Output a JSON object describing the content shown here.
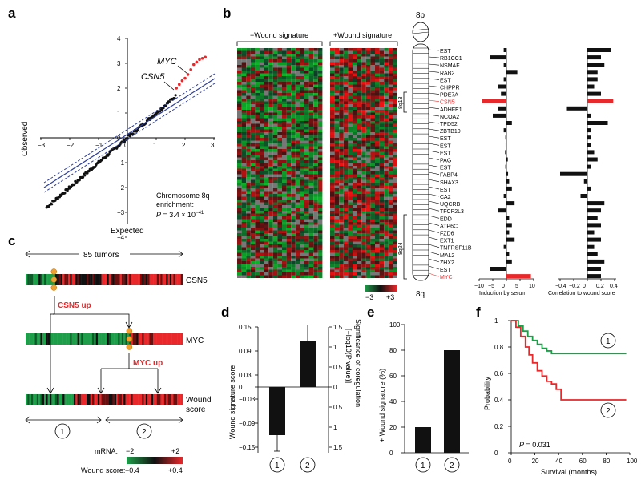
{
  "colors": {
    "red": "#e8282a",
    "green": "#1f9e4a",
    "blue": "#2c3e9a",
    "black": "#111111",
    "orange": "#f0a030",
    "grey": "#9a9a9a"
  },
  "panel_a": {
    "label": "a",
    "xlabel": "Expected",
    "ylabel": "Observed",
    "xticks": [
      "-3",
      "-2",
      "-1",
      "0",
      "1",
      "2",
      "3"
    ],
    "yticks": [
      "4",
      "3",
      "2",
      "1",
      "0",
      "-1",
      "-2",
      "-3",
      "-4"
    ],
    "annot_myc": "MYC",
    "annot_csn5": "CSN5",
    "enrich_line1": "Chromosome 8q",
    "enrich_line2": "enrichment:",
    "pvalue_prefix": "P",
    "pvalue_body": " = 3.4 × 10",
    "pvalue_exp": "−41"
  },
  "panel_b": {
    "label": "b",
    "neg_label": "−Wound signature",
    "pos_label": "+Wound signature",
    "chr_top": "8p",
    "chr_bottom": "8q",
    "band_8q13": "8q13",
    "band_8q24": "8q24",
    "scale_min": "−3",
    "scale_max": "+3",
    "genes": [
      "EST",
      "RB1CC1",
      "NSMAF",
      "RAB2",
      "EST",
      "CHPPR",
      "PDE7A",
      "CSN5",
      "ADHFE1",
      "NCOA2",
      "TPD52",
      "ZBTB10",
      "EST",
      "EST",
      "EST",
      "PAG",
      "EST",
      "FABP4",
      "SHAX3",
      "EST",
      "CA2",
      "UQCRB",
      "TFCP2L3",
      "EDD",
      "ATP6C",
      "FZD6",
      "EXT1",
      "TNFRSF11B",
      "MAL2",
      "ZHX2",
      "EST",
      "MYC"
    ],
    "induction_title": "Induction by serum",
    "induction_ticks": [
      "−10",
      "−5",
      "0",
      "5",
      "10"
    ],
    "induction_values": [
      -1,
      -6,
      -1,
      4,
      -1,
      -3,
      -2,
      -9,
      -3,
      -5,
      2,
      -1,
      -0.4,
      -0.3,
      -0.5,
      0.5,
      -0.4,
      0.6,
      1,
      2,
      -1,
      3,
      -3,
      1,
      2,
      1,
      3,
      -1,
      1,
      2,
      -6,
      9
    ],
    "correlation_title": "Correlation to wound score",
    "correlation_ticks": [
      "−0.4",
      "−0.2",
      "0",
      "0.2",
      "0.4"
    ],
    "correlation_values": [
      0.35,
      0.2,
      0.25,
      0.15,
      0.15,
      0.1,
      0.2,
      0.38,
      -0.3,
      0.05,
      0.3,
      0.05,
      0.05,
      0.05,
      0.1,
      0.15,
      0.05,
      -0.4,
      -0.05,
      0.05,
      -0.1,
      0.25,
      0.2,
      0.15,
      0.2,
      0.1,
      0.2,
      0.1,
      0.15,
      0.25,
      0.2,
      0.2
    ]
  },
  "panel_c": {
    "label": "c",
    "tumors": "85 tumors",
    "row1": "CSN5",
    "up1_gene": "CSN5",
    "up1_word": " up",
    "row2": "MYC",
    "up2_gene": "MYC",
    "up2_word": " up",
    "row3_line1": "Wound",
    "row3_line2": "score",
    "group1": "1",
    "group2": "2",
    "mrna_label": "mRNA:",
    "mrna_min": "−2",
    "mrna_max": "+2",
    "wound_label": "Wound score:",
    "wound_min": "−0.4",
    "wound_max": "+0.4"
  },
  "panel_d": {
    "label": "d",
    "ylabel_left": "Wound signature score",
    "ylabel_right_1": "Significance of coregulation",
    "ylabel_right_2": "[−log10(P value)]",
    "left_ticks": [
      "0.15",
      "0.09",
      "0.03",
      "0",
      "−0.03",
      "−0.09",
      "−0.15"
    ],
    "right_ticks": [
      "1.5",
      "1",
      "0.5",
      "0",
      "0.5",
      "1",
      "1.5"
    ],
    "groups": [
      "1",
      "2"
    ]
  },
  "panel_e": {
    "label": "e",
    "ylabel": "+ Wound signature (%)",
    "yticks": [
      "0",
      "20",
      "40",
      "60",
      "80",
      "100"
    ],
    "groups": [
      "1",
      "2"
    ]
  },
  "panel_f": {
    "label": "f",
    "ylabel": "Probability",
    "xlabel": "Survival (months)",
    "yticks": [
      "0",
      "0.2",
      "0.4",
      "0.6",
      "0.8",
      "1"
    ],
    "xticks": [
      "0",
      "20",
      "40",
      "60",
      "80",
      "100"
    ],
    "pvalue_prefix": "P",
    "pvalue_body": " = 0.031",
    "curve1": "1",
    "curve2": "2"
  },
  "chart_data": [
    {
      "type": "scatter",
      "title": "",
      "xlabel": "Expected",
      "ylabel": "Observed",
      "xlim": [
        -3,
        3
      ],
      "ylim": [
        -4,
        4
      ],
      "series": [
        {
          "name": "genes",
          "x": [
            -2.8,
            -2.5,
            -2.2,
            -1.9,
            -1.6,
            -1.3,
            -1.0,
            -0.7,
            -0.4,
            -0.1,
            0.2,
            0.5,
            0.8,
            1.1,
            1.4,
            1.6,
            1.8
          ],
          "values": [
            -2.7,
            -2.45,
            -2.15,
            -1.85,
            -1.55,
            -1.25,
            -0.95,
            -0.65,
            -0.38,
            -0.08,
            0.22,
            0.52,
            0.82,
            1.12,
            1.45,
            1.7,
            1.95
          ]
        },
        {
          "name": "8q enriched",
          "x": [
            1.7,
            1.8,
            1.9,
            2.0,
            2.1,
            2.2,
            2.3,
            2.4,
            2.5,
            2.6,
            2.7
          ],
          "values": [
            2.0,
            2.15,
            2.3,
            2.4,
            2.55,
            2.75,
            2.95,
            3.05,
            3.15,
            3.2,
            3.25
          ]
        }
      ],
      "annotations": [
        "MYC",
        "CSN5",
        "Chromosome 8q enrichment: P = 3.4 × 10−41"
      ]
    },
    {
      "type": "bar",
      "title": "Induction by serum",
      "categories": [
        "EST",
        "RB1CC1",
        "NSMAF",
        "RAB2",
        "EST",
        "CHPPR",
        "PDE7A",
        "CSN5",
        "ADHFE1",
        "NCOA2",
        "TPD52",
        "ZBTB10",
        "EST",
        "EST",
        "EST",
        "PAG",
        "EST",
        "FABP4",
        "SHAX3",
        "EST",
        "CA2",
        "UQCRB",
        "TFCP2L3",
        "EDD",
        "ATP6C",
        "FZD6",
        "EXT1",
        "TNFRSF11B",
        "MAL2",
        "ZHX2",
        "EST",
        "MYC"
      ],
      "values": [
        -1,
        -6,
        -1,
        4,
        -1,
        -3,
        -2,
        -9,
        -3,
        -5,
        2,
        -1,
        -0.4,
        -0.3,
        -0.5,
        0.5,
        -0.4,
        0.6,
        1,
        2,
        -1,
        3,
        -3,
        1,
        2,
        1,
        3,
        -1,
        1,
        2,
        -6,
        9
      ],
      "xlim": [
        -10,
        10
      ]
    },
    {
      "type": "bar",
      "title": "Correlation to wound score",
      "categories": [
        "EST",
        "RB1CC1",
        "NSMAF",
        "RAB2",
        "EST",
        "CHPPR",
        "PDE7A",
        "CSN5",
        "ADHFE1",
        "NCOA2",
        "TPD52",
        "ZBTB10",
        "EST",
        "EST",
        "EST",
        "PAG",
        "EST",
        "FABP4",
        "SHAX3",
        "EST",
        "CA2",
        "UQCRB",
        "TFCP2L3",
        "EDD",
        "ATP6C",
        "FZD6",
        "EXT1",
        "TNFRSF11B",
        "MAL2",
        "ZHX2",
        "EST",
        "MYC"
      ],
      "values": [
        0.35,
        0.2,
        0.25,
        0.15,
        0.15,
        0.1,
        0.2,
        0.38,
        -0.3,
        0.05,
        0.3,
        0.05,
        0.05,
        0.05,
        0.1,
        0.15,
        0.05,
        -0.4,
        -0.05,
        0.05,
        -0.1,
        0.25,
        0.2,
        0.15,
        0.2,
        0.1,
        0.2,
        0.1,
        0.15,
        0.25,
        0.2,
        0.2
      ],
      "xlim": [
        -0.4,
        0.4
      ]
    },
    {
      "type": "bar",
      "title": "",
      "categories": [
        "1",
        "2"
      ],
      "values": [
        -0.12,
        0.115
      ],
      "errors": [
        0.04,
        0.04
      ],
      "ylabel": "Wound signature score",
      "ylim": [
        -0.15,
        0.15
      ]
    },
    {
      "type": "bar",
      "title": "",
      "categories": [
        "1",
        "2"
      ],
      "values": [
        20,
        80
      ],
      "ylabel": "+ Wound signature (%)",
      "ylim": [
        0,
        100
      ]
    },
    {
      "type": "line",
      "title": "",
      "xlabel": "Survival (months)",
      "ylabel": "Probability",
      "xlim": [
        0,
        100
      ],
      "ylim": [
        0,
        1
      ],
      "series": [
        {
          "name": "1",
          "x": [
            0,
            6,
            10,
            14,
            18,
            22,
            26,
            30,
            34,
            97
          ],
          "values": [
            1,
            0.96,
            0.92,
            0.88,
            0.85,
            0.82,
            0.79,
            0.77,
            0.75,
            0.75
          ]
        },
        {
          "name": "2",
          "x": [
            0,
            4,
            8,
            12,
            15,
            18,
            22,
            26,
            30,
            34,
            38,
            42,
            97
          ],
          "values": [
            1,
            0.95,
            0.88,
            0.8,
            0.74,
            0.68,
            0.62,
            0.58,
            0.54,
            0.52,
            0.48,
            0.4,
            0.4
          ]
        }
      ],
      "annotations": [
        "P = 0.031"
      ]
    }
  ]
}
